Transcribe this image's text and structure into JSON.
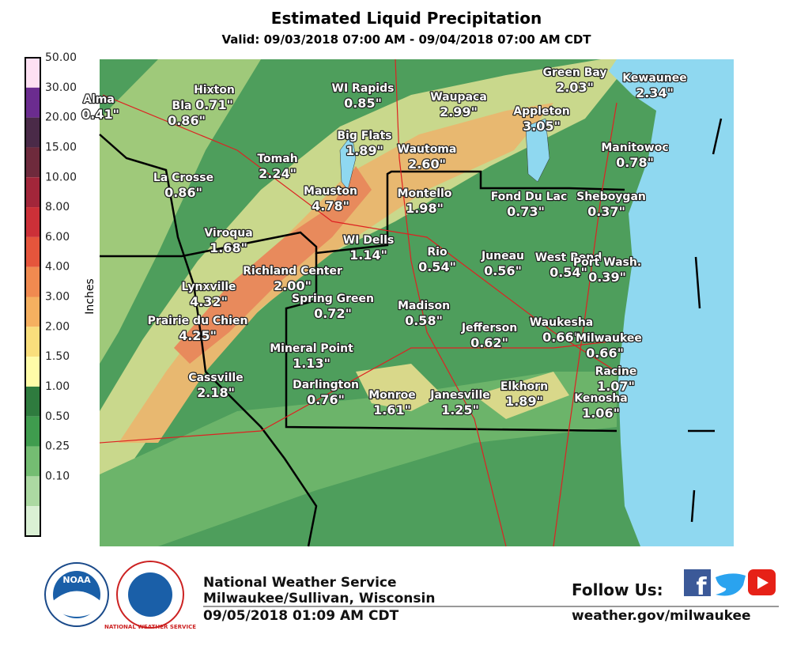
{
  "header": {
    "title": "Estimated Liquid Precipitation",
    "subtitle": "Valid: 09/03/2018 07:00 AM - 09/04/2018 07:00 AM CDT"
  },
  "legend": {
    "label": "Inches",
    "levels": [
      "50.00",
      "30.00",
      "20.00",
      "15.00",
      "10.00",
      "8.00",
      "6.00",
      "4.00",
      "3.00",
      "2.00",
      "1.50",
      "1.00",
      "0.50",
      "0.25",
      "0.10"
    ]
  },
  "cities": [
    {
      "name": "Alma",
      "amount": "0.41\""
    },
    {
      "name": "Hixton",
      "amount": "0.71\""
    },
    {
      "name": "Bla",
      "amount": "0.86\""
    },
    {
      "name": "WI Rapids",
      "amount": "0.85\""
    },
    {
      "name": "Waupaca",
      "amount": "2.99\""
    },
    {
      "name": "Green Bay",
      "amount": "2.03\""
    },
    {
      "name": "Kewaunee",
      "amount": "2.34\""
    },
    {
      "name": "Appleton",
      "amount": "3.05\""
    },
    {
      "name": "Big Flats",
      "amount": "1.89\""
    },
    {
      "name": "Wautoma",
      "amount": "2.60\""
    },
    {
      "name": "Manitowoc",
      "amount": "0.78\""
    },
    {
      "name": "Tomah",
      "amount": "2.24\""
    },
    {
      "name": "La Crosse",
      "amount": "0.86\""
    },
    {
      "name": "Mauston",
      "amount": "4.78\""
    },
    {
      "name": "Montello",
      "amount": "1.98\""
    },
    {
      "name": "Fond Du Lac",
      "amount": "0.73\""
    },
    {
      "name": "Sheboygan",
      "amount": "0.37\""
    },
    {
      "name": "Viroqua",
      "amount": "1.68\""
    },
    {
      "name": "WI Dells",
      "amount": "1.14\""
    },
    {
      "name": "Rio",
      "amount": "0.54\""
    },
    {
      "name": "Juneau",
      "amount": "0.56\""
    },
    {
      "name": "West Bend",
      "amount": "0.54\""
    },
    {
      "name": "Port Wash.",
      "amount": "0.39\""
    },
    {
      "name": "Richland Center",
      "amount": "2.00\""
    },
    {
      "name": "Lynxville",
      "amount": "4.32\""
    },
    {
      "name": "Spring Green",
      "amount": "0.72\""
    },
    {
      "name": "Madison",
      "amount": "0.58\""
    },
    {
      "name": "Prairie du Chien",
      "amount": "4.25\""
    },
    {
      "name": "Jefferson",
      "amount": "0.62\""
    },
    {
      "name": "Waukesha",
      "amount": "0.66\""
    },
    {
      "name": "Milwaukee",
      "amount": "0.66\""
    },
    {
      "name": "Mineral Point",
      "amount": "1.13\""
    },
    {
      "name": "Racine",
      "amount": "1.07\""
    },
    {
      "name": "Cassville",
      "amount": "2.18\""
    },
    {
      "name": "Darlington",
      "amount": "0.76\""
    },
    {
      "name": "Monroe",
      "amount": "1.61\""
    },
    {
      "name": "Janesville",
      "amount": "1.25\""
    },
    {
      "name": "Elkhorn",
      "amount": "1.89\""
    },
    {
      "name": "Kenosha",
      "amount": "1.06\""
    }
  ],
  "logos": {
    "noaa": "NOAA",
    "nws": "NATIONAL WEATHER SERVICE"
  },
  "footer": {
    "office": "National Weather Service",
    "location": "Milwaukee/Sullivan, Wisconsin",
    "issued": "09/05/2018 01:09 AM CDT",
    "follow": "Follow Us:",
    "url": "weather.gov/milwaukee"
  }
}
